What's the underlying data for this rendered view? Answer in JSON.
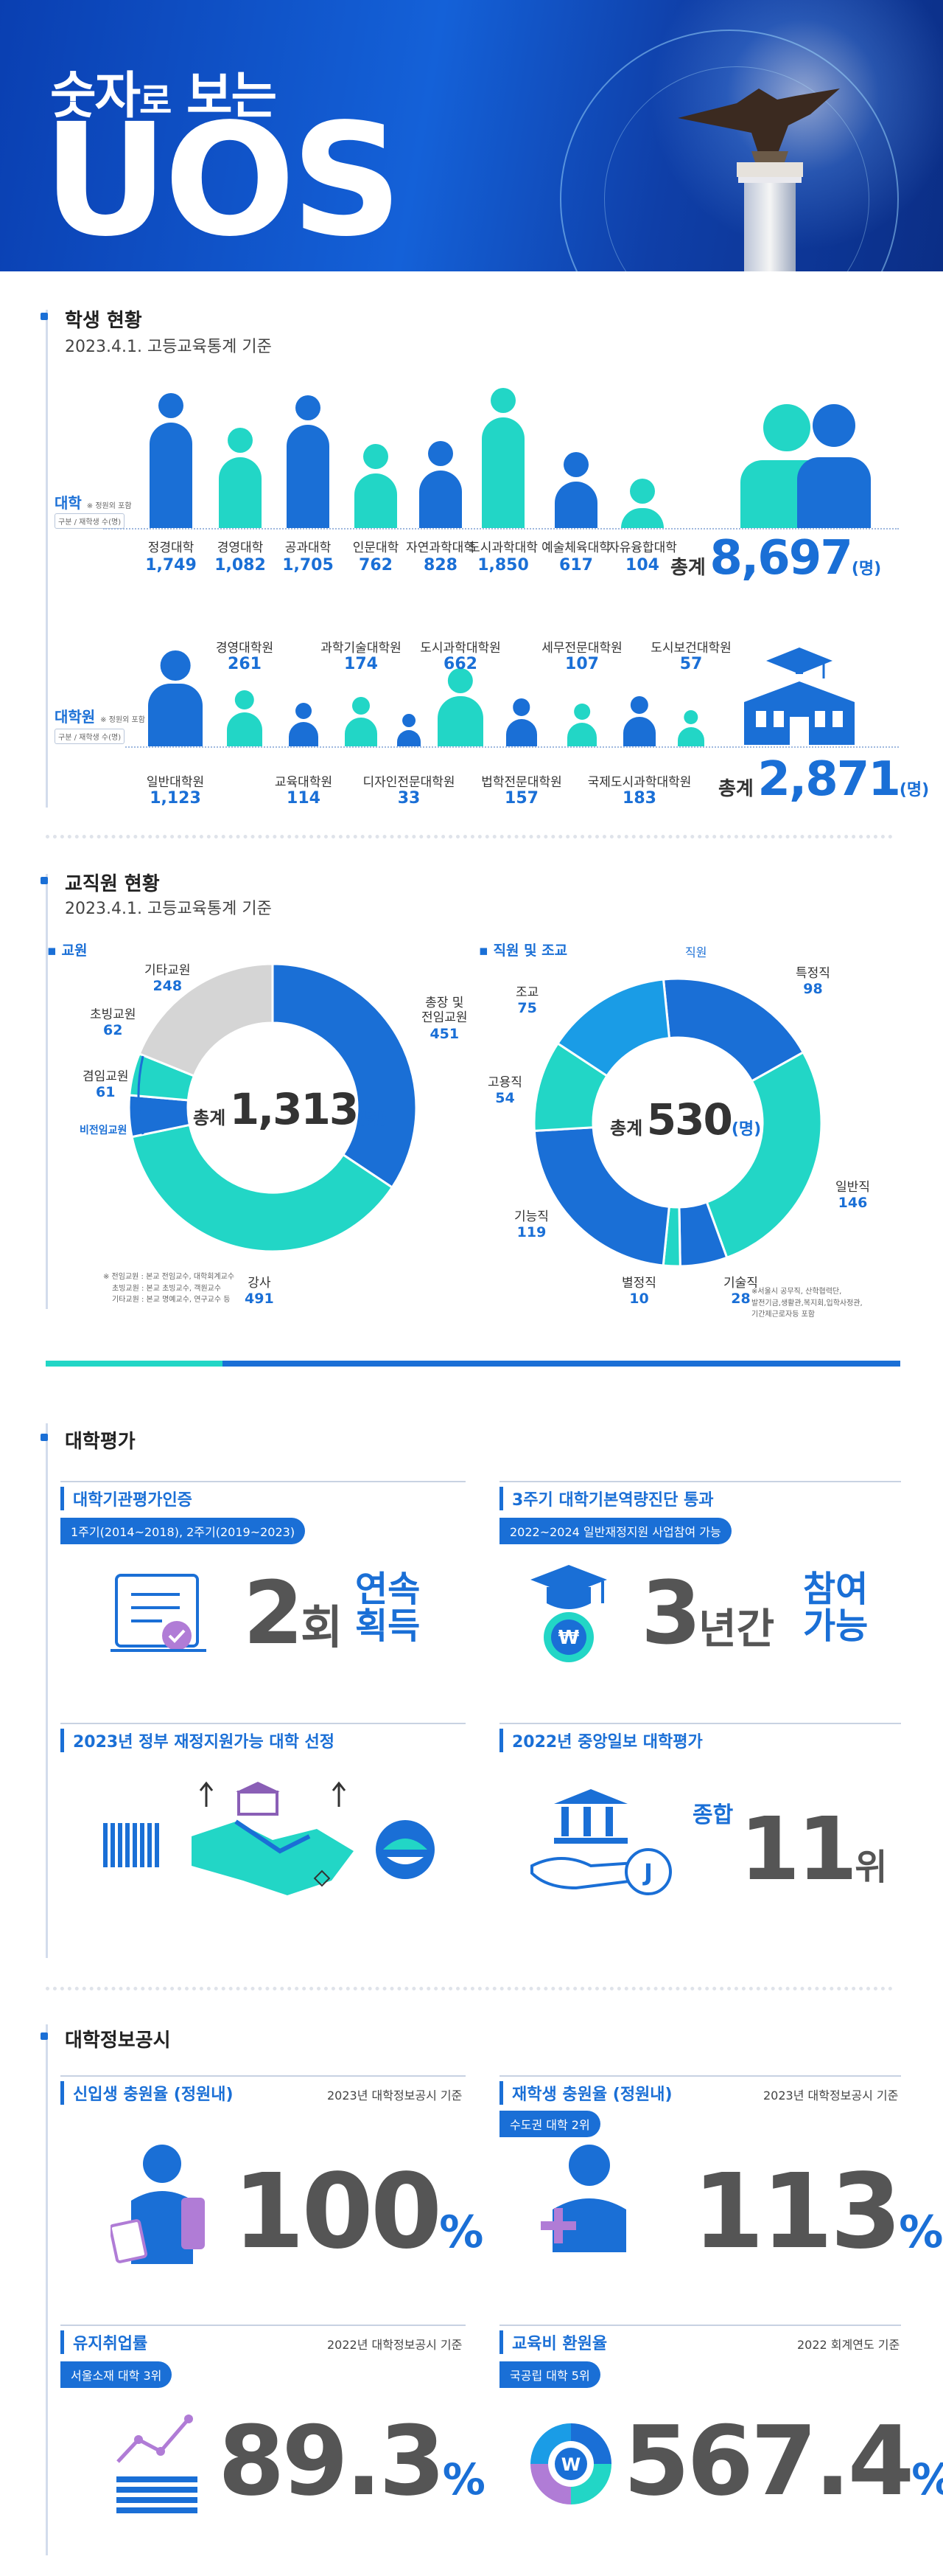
{
  "header": {
    "subtitle_a": "숫자",
    "subtitle_b": "로",
    "subtitle_c": " 보는",
    "title": "UOS"
  },
  "students": {
    "title": "학생 현황",
    "subtitle": "2023.4.1. 고등교육통계 기준",
    "undergrad_label": "대학",
    "undergrad_note": "※ 정원외 포함",
    "legend_tag": "구분 / 재학생 수(명)",
    "undergrad": [
      {
        "name": "정경대학",
        "value": "1,749"
      },
      {
        "name": "경영대학",
        "value": "1,082"
      },
      {
        "name": "공과대학",
        "value": "1,705"
      },
      {
        "name": "인문대학",
        "value": "762"
      },
      {
        "name": "자연과학대학",
        "value": "828"
      },
      {
        "name": "도시과학대학",
        "value": "1,850"
      },
      {
        "name": "예술체육대학",
        "value": "617"
      },
      {
        "name": "자유융합대학",
        "value": "104"
      }
    ],
    "undergrad_total_label": "총계",
    "undergrad_total": "8,697",
    "unit": "(명)",
    "grad_label": "대학원",
    "grad_note": "※ 정원외 포함",
    "grad_top": [
      {
        "name": "경영대학원",
        "value": "261"
      },
      {
        "name": "과학기술대학원",
        "value": "174"
      },
      {
        "name": "도시과학대학원",
        "value": "662"
      },
      {
        "name": "세무전문대학원",
        "value": "107"
      },
      {
        "name": "도시보건대학원",
        "value": "57"
      }
    ],
    "grad_bottom": [
      {
        "name": "일반대학원",
        "value": "1,123"
      },
      {
        "name": "교육대학원",
        "value": "114"
      },
      {
        "name": "디자인전문대학원",
        "value": "33"
      },
      {
        "name": "법학전문대학원",
        "value": "157"
      },
      {
        "name": "국제도시과학대학원",
        "value": "183"
      }
    ],
    "grad_total_label": "총계",
    "grad_total": "2,871"
  },
  "staff": {
    "title": "교직원 현황",
    "subtitle": "2023.4.1. 고등교육통계 기준",
    "faculty_label": "교원",
    "faculty_total_label": "총계",
    "faculty_total": "1,313",
    "unit": "(명)",
    "faculty_segments": [
      {
        "name": "총장 및 전임교원",
        "name_a": "총장 및",
        "name_b": "전임교원",
        "value": 451,
        "color": "#1a6fd6"
      },
      {
        "name": "강사",
        "value": 491,
        "color": "#22d6c6"
      },
      {
        "name": "겸임교원",
        "value": 61,
        "color": "#1a6fd6"
      },
      {
        "name": "초빙교원",
        "value": 62,
        "color": "#22d6c6"
      },
      {
        "name": "기타교원",
        "value": 248,
        "color": "#d5d5d5"
      }
    ],
    "faculty_nonfull_label": "비전임교원",
    "faculty_notes": [
      "※ 전임교원 : 본교 전임교수, 대학회계교수",
      "초빙교원 : 본교 초빙교수, 객원교수",
      "기타교원 : 본교 명예교수, 연구교수 등"
    ],
    "employee_label": "직원 및 조교",
    "employee_total_label": "총계",
    "employee_total": "530",
    "employee_group_label": "직원",
    "employee_segments": [
      {
        "name": "특정직",
        "value": 98,
        "color": "#1a6fd6"
      },
      {
        "name": "일반직",
        "value": 146,
        "color": "#22d6c6"
      },
      {
        "name": "기술직",
        "value": 28,
        "color": "#1a6fd6"
      },
      {
        "name": "별정직",
        "value": 10,
        "color": "#22d6c6"
      },
      {
        "name": "기능직",
        "value": 119,
        "color": "#1a6fd6"
      },
      {
        "name": "고용직",
        "value": 54,
        "color": "#22d6c6"
      },
      {
        "name": "조교",
        "value": 75,
        "color": "#1a9ce6"
      }
    ],
    "employee_notes": [
      "※서울시 공무직, 산학협력단,",
      "발전기금,생활관,복지회,입학사정관,",
      "기간제근로자등 포함"
    ]
  },
  "evaluation": {
    "title": "대학평가",
    "cards": [
      {
        "title": "대학기관평가인증",
        "pill": "1주기(2014~2018), 2주기(2019~2023)",
        "big": "2",
        "big_unit": "회",
        "side_a": "연속",
        "side_b": "획득"
      },
      {
        "title": "3주기 대학기본역량진단 통과",
        "pill": "2022~2024 일반재정지원 사업참여 가능",
        "big": "3",
        "big_unit": "년간",
        "side_a": "참여",
        "side_b": "가능"
      },
      {
        "title": "2023년 정부 재정지원가능 대학 선정"
      },
      {
        "title": "2022년 중앙일보 대학평가",
        "prefix": "종합",
        "big": "11",
        "big_unit": "위"
      }
    ]
  },
  "disclosure": {
    "title": "대학정보공시",
    "cards": [
      {
        "title": "신입생 충원율 (정원내)",
        "ref": "2023년 대학정보공시 기준",
        "big": "100",
        "unit": "%"
      },
      {
        "title": "재학생 충원율 (정원내)",
        "ref": "2023년 대학정보공시 기준",
        "pill": "수도권 대학 2위",
        "big": "113",
        "unit": "%"
      },
      {
        "title": "유지취업률",
        "ref": "2022년 대학정보공시 기준",
        "pill": "서울소재 대학 3위",
        "big": "89.3",
        "unit": "%"
      },
      {
        "title": "교육비 환원율",
        "ref": "2022 회계연도 기준",
        "pill": "국공립 대학 5위",
        "big": "567.4",
        "unit": "%"
      }
    ]
  },
  "chart_data": [
    {
      "type": "bar",
      "title": "대학",
      "categories": [
        "정경대학",
        "경영대학",
        "공과대학",
        "인문대학",
        "자연과학대학",
        "도시과학대학",
        "예술체육대학",
        "자유융합대학"
      ],
      "values": [
        1749,
        1082,
        1705,
        762,
        828,
        1850,
        617,
        104
      ]
    },
    {
      "type": "bar",
      "title": "대학원",
      "categories": [
        "일반대학원",
        "경영대학원",
        "교육대학원",
        "과학기술대학원",
        "디자인전문대학원",
        "도시과학대학원",
        "법학전문대학원",
        "세무전문대학원",
        "국제도시과학대학원",
        "도시보건대학원"
      ],
      "values": [
        1123,
        261,
        114,
        174,
        33,
        662,
        157,
        107,
        183,
        57
      ]
    },
    {
      "type": "pie",
      "title": "교원",
      "categories": [
        "총장 및 전임교원",
        "강사",
        "겸임교원",
        "초빙교원",
        "기타교원"
      ],
      "values": [
        451,
        491,
        61,
        62,
        248
      ]
    },
    {
      "type": "pie",
      "title": "직원 및 조교",
      "categories": [
        "특정직",
        "일반직",
        "기술직",
        "별정직",
        "기능직",
        "고용직",
        "조교"
      ],
      "values": [
        98,
        146,
        28,
        10,
        119,
        54,
        75
      ]
    }
  ]
}
